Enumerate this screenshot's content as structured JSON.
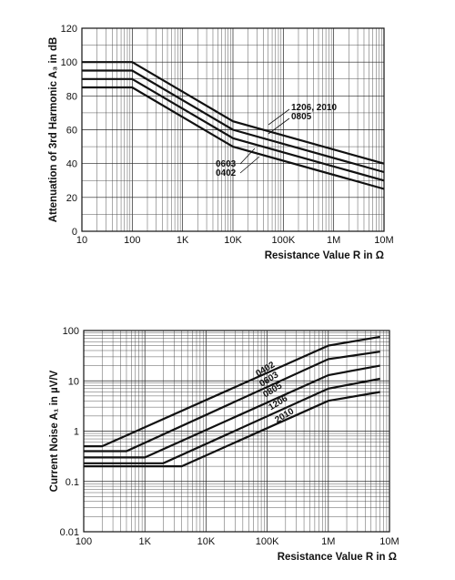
{
  "chart_data": [
    {
      "type": "line",
      "xlabel": "Resistance Value R in Ω",
      "ylabel": "Attenuation of 3rd Harmonic A₃ in dB",
      "xscale": "log",
      "xlim": [
        10,
        10000000
      ],
      "ylim": [
        0,
        120
      ],
      "grid": true,
      "x_tick_labels": [
        "10",
        "100",
        "1K",
        "10K",
        "100K",
        "1M",
        "10M"
      ],
      "y_tick_labels": [
        "0",
        "20",
        "40",
        "60",
        "80",
        "100",
        "120"
      ],
      "series": [
        {
          "name": "1206, 2010",
          "x": [
            10,
            100,
            10000,
            10000000
          ],
          "y": [
            100,
            100,
            65,
            40
          ]
        },
        {
          "name": "0805",
          "x": [
            10,
            100,
            10000,
            10000000
          ],
          "y": [
            95,
            95,
            60,
            35
          ]
        },
        {
          "name": "0603",
          "x": [
            10,
            100,
            10000,
            10000000
          ],
          "y": [
            90,
            90,
            55,
            30
          ]
        },
        {
          "name": "0402",
          "x": [
            10,
            100,
            10000,
            10000000
          ],
          "y": [
            85,
            85,
            50,
            25
          ]
        }
      ]
    },
    {
      "type": "line",
      "xlabel": "Resistance Value R in Ω",
      "ylabel": "Current Noise A₁ in µV/V",
      "xscale": "log",
      "yscale": "log",
      "xlim": [
        100,
        10000000
      ],
      "ylim": [
        0.01,
        100
      ],
      "grid": true,
      "x_tick_labels": [
        "100",
        "1K",
        "10K",
        "100K",
        "1M",
        "10M"
      ],
      "y_tick_labels": [
        "0.01",
        "0.1",
        "1",
        "10",
        "100"
      ],
      "series": [
        {
          "name": "0402",
          "x": [
            100,
            200,
            1000000,
            7000000
          ],
          "y": [
            0.5,
            0.5,
            50,
            75
          ]
        },
        {
          "name": "0603",
          "x": [
            100,
            500,
            1000000,
            7000000
          ],
          "y": [
            0.4,
            0.4,
            27,
            38
          ]
        },
        {
          "name": "0805",
          "x": [
            100,
            1000,
            1000000,
            7000000
          ],
          "y": [
            0.3,
            0.3,
            13,
            20
          ]
        },
        {
          "name": "1206",
          "x": [
            100,
            2000,
            1000000,
            7000000
          ],
          "y": [
            0.23,
            0.23,
            7,
            11
          ]
        },
        {
          "name": "2010",
          "x": [
            100,
            4000,
            1000000,
            7000000
          ],
          "y": [
            0.2,
            0.2,
            4,
            6
          ]
        }
      ]
    }
  ]
}
